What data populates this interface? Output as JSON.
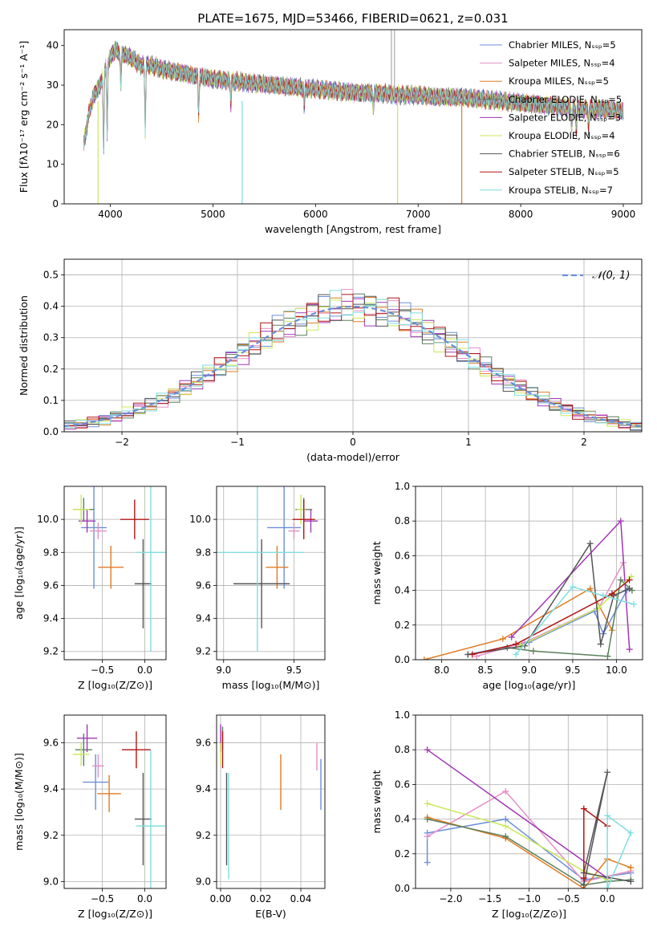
{
  "figure": {
    "title": "PLATE=1675, MJD=53466, FIBERID=0621, z=0.031"
  },
  "colors": [
    "#6b8fd8",
    "#e58fc7",
    "#e07b22",
    "#5a7f5a",
    "#a137b5",
    "#c9e85a",
    "#555555",
    "#b01515",
    "#7fdde0"
  ],
  "chart_data": [
    {
      "id": "spectrum",
      "type": "line",
      "xlabel": "wavelength [Angstrom, rest frame]",
      "ylabel": "Flux [fλ10⁻¹⁷ erg cm⁻² s⁻¹ A⁻¹]",
      "xlim": [
        3550,
        9180
      ],
      "ylim": [
        0,
        44
      ],
      "xticks": [
        4000,
        5000,
        6000,
        7000,
        8000,
        9000
      ],
      "yticks": [
        0,
        10,
        20,
        30,
        40
      ],
      "legend_position": "top-right",
      "legend": [
        "Chabrier MILES, Nₛₛₚ=5",
        "Salpeter MILES, Nₛₛₚ=4",
        "Kroupa MILES, Nₛₛₚ=5",
        "Chabrier ELODIE, Nₛₛₚ=5",
        "Salpeter ELODIE, Nₛₛₚ=3",
        "Kroupa ELODIE, Nₛₛₚ=4",
        "Chabrier STELIB, Nₛₛₚ=6",
        "Salpeter STELIB, Nₛₛₚ=5",
        "Kroupa STELIB, Nₛₛₚ=7"
      ],
      "continuum": [
        [
          3740,
          15
        ],
        [
          3800,
          24
        ],
        [
          3850,
          28
        ],
        [
          3900,
          30
        ],
        [
          3950,
          34
        ],
        [
          4000,
          37
        ],
        [
          4050,
          39
        ],
        [
          4100,
          38
        ],
        [
          4200,
          37
        ],
        [
          4300,
          35
        ],
        [
          4400,
          35
        ],
        [
          4500,
          34
        ],
        [
          4600,
          33.5
        ],
        [
          4700,
          33
        ],
        [
          4800,
          32.5
        ],
        [
          4900,
          32
        ],
        [
          5000,
          31.5
        ],
        [
          5200,
          31
        ],
        [
          5400,
          30.5
        ],
        [
          5600,
          30
        ],
        [
          5800,
          29.5
        ],
        [
          6000,
          29
        ],
        [
          6200,
          28.5
        ],
        [
          6400,
          28
        ],
        [
          6600,
          28
        ],
        [
          6800,
          27.5
        ],
        [
          7000,
          27.5
        ],
        [
          7200,
          27
        ],
        [
          7400,
          27
        ],
        [
          7600,
          26.5
        ],
        [
          7800,
          26
        ],
        [
          8000,
          25.5
        ],
        [
          8200,
          25
        ],
        [
          8400,
          24.5
        ],
        [
          8600,
          24
        ],
        [
          8800,
          24
        ],
        [
          9000,
          23.5
        ]
      ],
      "absorption_lines": [
        [
          3934,
          20
        ],
        [
          3969,
          18
        ],
        [
          4102,
          8
        ],
        [
          4340,
          17
        ],
        [
          4861,
          10
        ],
        [
          5175,
          6
        ],
        [
          5890,
          5
        ],
        [
          6563,
          4
        ],
        [
          8498,
          5
        ],
        [
          8542,
          6
        ],
        [
          8662,
          5
        ]
      ],
      "spikes": [
        [
          3880,
          "kroupa-elodie",
          0
        ],
        [
          5285,
          "kroupa-stelib",
          0
        ],
        [
          6800,
          "kroupa-elodie",
          0
        ],
        [
          7425,
          "kroupa-miles",
          0
        ],
        [
          6740,
          "grey",
          44
        ],
        [
          6770,
          "grey",
          44
        ]
      ]
    },
    {
      "id": "residuals",
      "type": "histogram",
      "xlabel": "(data-model)/error",
      "ylabel": "Normed distribution",
      "xlim": [
        -2.5,
        2.5
      ],
      "ylim": [
        0,
        0.55
      ],
      "xticks": [
        -2,
        -1,
        0,
        1,
        2
      ],
      "yticks": [
        0.0,
        0.1,
        0.2,
        0.3,
        0.4,
        0.5
      ],
      "bin_width": 0.1,
      "reference": {
        "label": "𝒩(0, 1)",
        "mu": 0,
        "sigma": 1
      },
      "legend_position": "top-right"
    },
    {
      "id": "age-vs-z",
      "type": "errorbar",
      "xlabel": "Z [log₁₀(Z/Z⊙)]",
      "ylabel": "age [log₁₀(age/yr)]",
      "xlim": [
        -0.95,
        0.25
      ],
      "ylim": [
        9.15,
        10.2
      ],
      "xticks": [
        -0.5,
        0.0
      ],
      "yticks": [
        9.2,
        9.4,
        9.6,
        9.8,
        10.0
      ],
      "points": [
        {
          "x": -0.6,
          "y": 9.95,
          "xerr": 0.15,
          "yerr": 0.37
        },
        {
          "x": -0.55,
          "y": 9.93,
          "xerr": 0.1,
          "yerr": 0.05
        },
        {
          "x": -0.4,
          "y": 9.71,
          "xerr": 0.15,
          "yerr": 0.13
        },
        {
          "x": -0.72,
          "y": 10.06,
          "xerr": 0.12,
          "yerr": 0.07
        },
        {
          "x": -0.68,
          "y": 9.99,
          "xerr": 0.1,
          "yerr": 0.07
        },
        {
          "x": -0.75,
          "y": 10.06,
          "xerr": 0.1,
          "yerr": 0.09
        },
        {
          "x": -0.02,
          "y": 9.61,
          "xerr": 0.1,
          "yerr": 0.27
        },
        {
          "x": -0.12,
          "y": 10.0,
          "xerr": 0.17,
          "yerr": 0.12
        },
        {
          "x": 0.07,
          "y": 9.8,
          "xerr": 0.17,
          "yerr": 0.6
        }
      ]
    },
    {
      "id": "age-vs-mass",
      "type": "errorbar",
      "xlabel": "mass [log₁₀(M/M⊙)]",
      "ylabel": "",
      "xlim": [
        8.95,
        9.72
      ],
      "ylim": [
        9.15,
        10.2
      ],
      "xticks": [
        9.0,
        9.5
      ],
      "yticks": [
        9.2,
        9.4,
        9.6,
        9.8,
        10.0
      ],
      "points": [
        {
          "x": 9.43,
          "y": 9.95,
          "xerr": 0.12,
          "yerr": 0.37
        },
        {
          "x": 9.5,
          "y": 9.93,
          "xerr": 0.04,
          "yerr": 0.05
        },
        {
          "x": 9.38,
          "y": 9.71,
          "xerr": 0.08,
          "yerr": 0.13
        },
        {
          "x": 9.57,
          "y": 10.06,
          "xerr": 0.06,
          "yerr": 0.07
        },
        {
          "x": 9.62,
          "y": 9.99,
          "xerr": 0.05,
          "yerr": 0.07
        },
        {
          "x": 9.55,
          "y": 10.06,
          "xerr": 0.03,
          "yerr": 0.09
        },
        {
          "x": 9.27,
          "y": 9.61,
          "xerr": 0.2,
          "yerr": 0.27
        },
        {
          "x": 9.57,
          "y": 10.0,
          "xerr": 0.08,
          "yerr": 0.12
        },
        {
          "x": 9.24,
          "y": 9.8,
          "xerr": 0.33,
          "yerr": 0.6
        }
      ]
    },
    {
      "id": "mass-weight-vs-age",
      "type": "line",
      "xlabel": "age [log₁₀(age/yr)]",
      "ylabel": "mass weight",
      "xlim": [
        7.7,
        10.3
      ],
      "ylim": [
        0,
        1.0
      ],
      "xticks": [
        8.0,
        8.5,
        9.0,
        9.5,
        10.0
      ],
      "yticks": [
        0.0,
        0.2,
        0.4,
        0.6,
        0.8,
        1.0
      ],
      "series": [
        {
          "values": [
            [
              8.3,
              0.03
            ],
            [
              9.0,
              0.1
            ],
            [
              9.75,
              0.28
            ],
            [
              9.85,
              0.15
            ],
            [
              10.12,
              0.4
            ]
          ]
        },
        {
          "values": [
            [
              8.4,
              0.02
            ],
            [
              8.95,
              0.1
            ],
            [
              9.8,
              0.3
            ],
            [
              10.08,
              0.56
            ]
          ]
        },
        {
          "values": [
            [
              7.8,
              0.0
            ],
            [
              8.7,
              0.12
            ],
            [
              9.7,
              0.41
            ],
            [
              9.95,
              0.17
            ]
          ]
        },
        {
          "values": [
            [
              8.75,
              0.07
            ],
            [
              9.05,
              0.05
            ],
            [
              9.9,
              0.02
            ],
            [
              10.05,
              0.46
            ],
            [
              10.18,
              0.4
            ]
          ]
        },
        {
          "values": [
            [
              8.8,
              0.13
            ],
            [
              10.05,
              0.8
            ],
            [
              10.15,
              0.06
            ]
          ]
        },
        {
          "values": [
            [
              8.9,
              0.08
            ],
            [
              9.8,
              0.3
            ],
            [
              10.17,
              0.48
            ]
          ]
        },
        {
          "values": [
            [
              8.3,
              0.03
            ],
            [
              8.95,
              0.08
            ],
            [
              9.7,
              0.67
            ],
            [
              9.82,
              0.09
            ],
            [
              9.97,
              0.37
            ],
            [
              10.15,
              0.41
            ]
          ]
        },
        {
          "values": [
            [
              8.35,
              0.03
            ],
            [
              8.85,
              0.09
            ],
            [
              9.95,
              0.38
            ],
            [
              10.15,
              0.46
            ]
          ]
        },
        {
          "values": [
            [
              8.85,
              0.03
            ],
            [
              9.5,
              0.42
            ],
            [
              9.85,
              0.37
            ],
            [
              10.2,
              0.32
            ]
          ]
        }
      ]
    },
    {
      "id": "mass-vs-z",
      "type": "errorbar",
      "xlabel": "Z [log₁₀(Z/Z⊙)]",
      "ylabel": "mass [log₁₀(M/M⊙)]",
      "xlim": [
        -0.95,
        0.25
      ],
      "ylim": [
        8.97,
        9.72
      ],
      "xticks": [
        -0.5,
        0.0
      ],
      "yticks": [
        9.0,
        9.2,
        9.4,
        9.6
      ],
      "points": [
        {
          "x": -0.58,
          "y": 9.43,
          "xerr": 0.15,
          "yerr": 0.12
        },
        {
          "x": -0.55,
          "y": 9.5,
          "xerr": 0.07,
          "yerr": 0.05
        },
        {
          "x": -0.42,
          "y": 9.38,
          "xerr": 0.14,
          "yerr": 0.08
        },
        {
          "x": -0.72,
          "y": 9.57,
          "xerr": 0.1,
          "yerr": 0.07
        },
        {
          "x": -0.68,
          "y": 9.62,
          "xerr": 0.12,
          "yerr": 0.06
        },
        {
          "x": -0.75,
          "y": 9.55,
          "xerr": 0.1,
          "yerr": 0.05
        },
        {
          "x": -0.02,
          "y": 9.27,
          "xerr": 0.1,
          "yerr": 0.2
        },
        {
          "x": -0.1,
          "y": 9.57,
          "xerr": 0.17,
          "yerr": 0.08
        },
        {
          "x": 0.07,
          "y": 9.24,
          "xerr": 0.17,
          "yerr": 0.33
        }
      ]
    },
    {
      "id": "mass-vs-ebv",
      "type": "errorbar",
      "xlabel": "E(B-V)",
      "ylabel": "",
      "xlim": [
        -0.002,
        0.052
      ],
      "ylim": [
        8.97,
        9.72
      ],
      "xticks": [
        0.0,
        0.02,
        0.04
      ],
      "yticks": [
        9.0,
        9.2,
        9.4,
        9.6
      ],
      "points": [
        {
          "x": 0.05,
          "y": 9.42,
          "xerr": 0,
          "yerr": 0.11
        },
        {
          "x": 0.048,
          "y": 9.54,
          "xerr": 0,
          "yerr": 0.06
        },
        {
          "x": 0.03,
          "y": 9.43,
          "xerr": 0,
          "yerr": 0.12
        },
        {
          "x": 0.001,
          "y": 9.62,
          "xerr": 0,
          "yerr": 0.05
        },
        {
          "x": 0.0,
          "y": 9.62,
          "xerr": 0,
          "yerr": 0.06
        },
        {
          "x": 0.0,
          "y": 9.55,
          "xerr": 0,
          "yerr": 0.05
        },
        {
          "x": 0.003,
          "y": 9.27,
          "xerr": 0,
          "yerr": 0.2
        },
        {
          "x": 0.001,
          "y": 9.57,
          "xerr": 0,
          "yerr": 0.08
        },
        {
          "x": 0.004,
          "y": 9.24,
          "xerr": 0,
          "yerr": 0.23
        }
      ]
    },
    {
      "id": "mass-weight-vs-z",
      "type": "line",
      "xlabel": "Z [log₁₀(Z/Z⊙)]",
      "ylabel": "mass weight",
      "xlim": [
        -2.45,
        0.45
      ],
      "ylim": [
        0,
        1.0
      ],
      "xticks": [
        -2.0,
        -1.5,
        -1.0,
        -0.5,
        0.0
      ],
      "yticks": [
        0.0,
        0.2,
        0.4,
        0.6,
        0.8,
        1.0
      ],
      "series": [
        {
          "values": [
            [
              -2.3,
              0.15
            ],
            [
              -2.3,
              0.32
            ],
            [
              -1.3,
              0.4
            ],
            [
              -0.3,
              0.05
            ],
            [
              0.3,
              0.09
            ]
          ]
        },
        {
          "values": [
            [
              -2.3,
              0.3
            ],
            [
              -1.3,
              0.56
            ],
            [
              -0.3,
              0.04
            ],
            [
              0.3,
              0.1
            ]
          ]
        },
        {
          "values": [
            [
              -2.3,
              0.41
            ],
            [
              -1.3,
              0.29
            ],
            [
              -0.3,
              0.0
            ],
            [
              0.0,
              0.17
            ],
            [
              0.3,
              0.12
            ]
          ]
        },
        {
          "values": [
            [
              -2.3,
              0.4
            ],
            [
              -1.3,
              0.3
            ],
            [
              -0.3,
              0.02
            ],
            [
              0.0,
              0.04
            ],
            [
              0.3,
              0.05
            ]
          ]
        },
        {
          "values": [
            [
              -2.3,
              0.8
            ],
            [
              0.0,
              0.06
            ]
          ]
        },
        {
          "values": [
            [
              -2.3,
              0.49
            ],
            [
              -1.3,
              0.36
            ],
            [
              -0.3,
              0.1
            ],
            [
              0.0,
              0.05
            ]
          ]
        },
        {
          "values": [
            [
              -0.3,
              0.02
            ],
            [
              0.0,
              0.67
            ],
            [
              -0.3,
              0.09
            ],
            [
              0.3,
              0.04
            ]
          ]
        },
        {
          "values": [
            [
              -0.3,
              0.06
            ],
            [
              -0.3,
              0.46
            ],
            [
              0.0,
              0.36
            ]
          ]
        },
        {
          "values": [
            [
              0.0,
              0.0
            ],
            [
              0.0,
              0.42
            ],
            [
              0.3,
              0.32
            ],
            [
              0.0,
              0.0
            ]
          ]
        }
      ]
    }
  ]
}
